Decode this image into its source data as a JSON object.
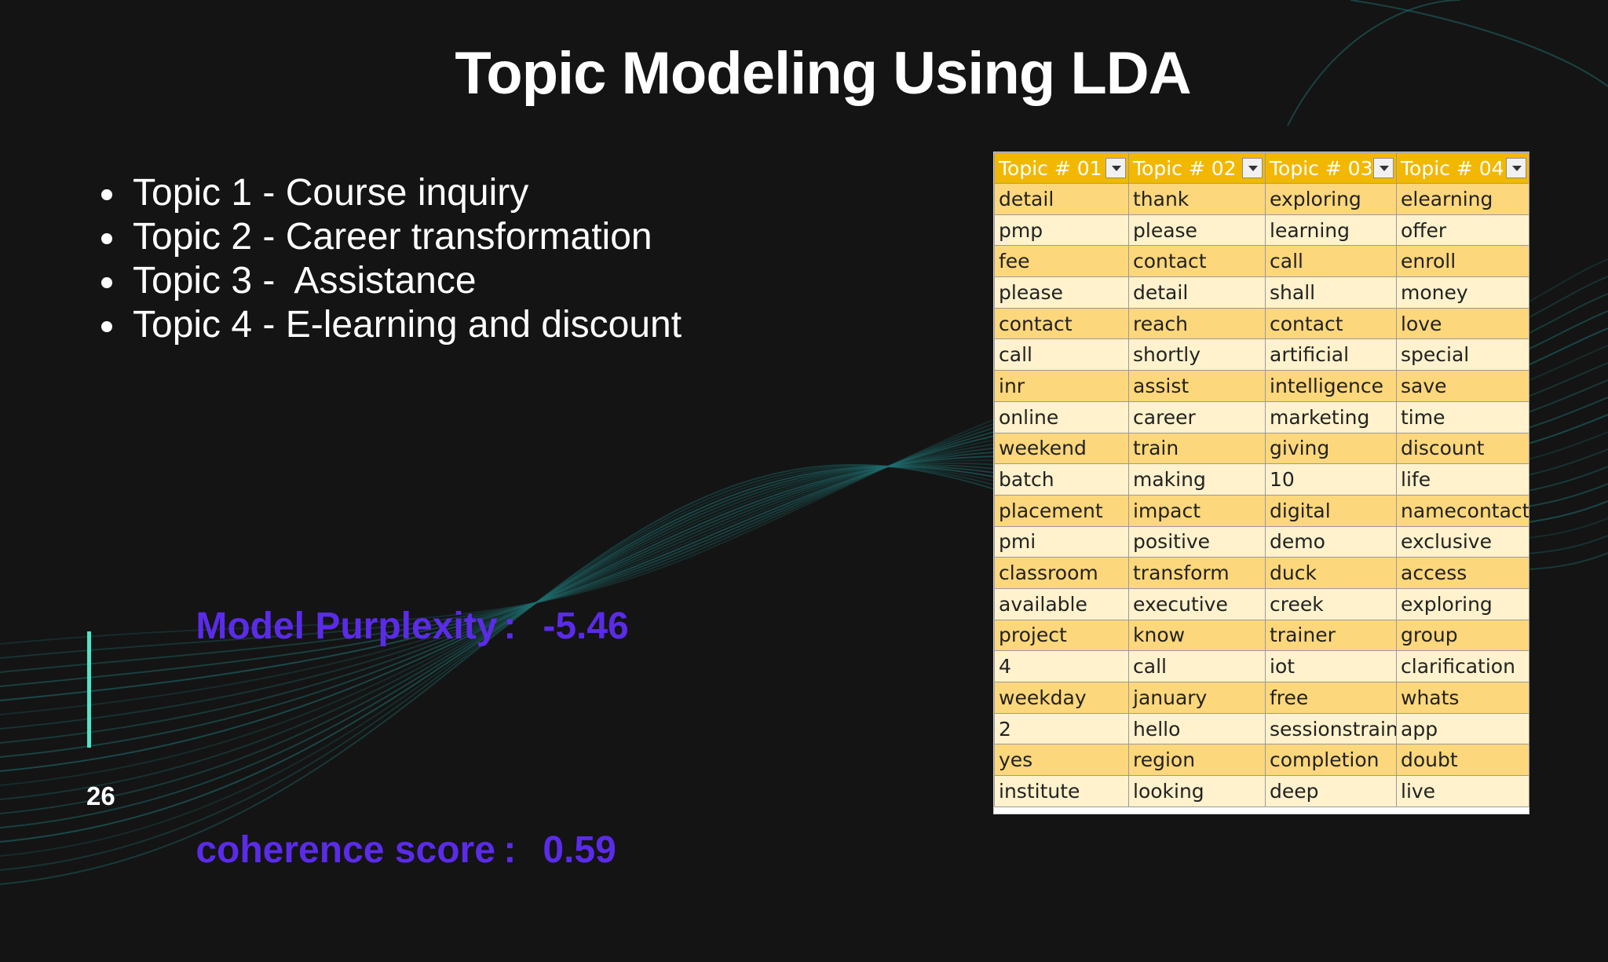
{
  "slide": {
    "title": "Topic Modeling Using LDA",
    "page_number": "26"
  },
  "bullets": [
    "Topic 1 - Course inquiry",
    "Topic 2 - Career transformation",
    "Topic 3 -  Assistance",
    "Topic 4 - E-learning and discount"
  ],
  "metrics": [
    {
      "label": "Model Purplexity",
      "sep": ":",
      "value": "-5.46"
    },
    {
      "label": "coherence score",
      "sep": ":",
      "value": "0.59"
    }
  ],
  "colors": {
    "background": "#141414",
    "metric_text": "#5b2bea",
    "accent_bar": "#4ee6c6",
    "waves": "#1f6f70",
    "table_header": "#f2b800",
    "table_row_odd": "#fdd77b",
    "table_row_even": "#fff2cc"
  },
  "table": {
    "headers": [
      "Topic # 01",
      "Topic # 02",
      "Topic # 03",
      "Topic # 04"
    ],
    "header_icon": "dropdown-filter-icon",
    "rows": [
      [
        "detail",
        "thank",
        "exploring",
        "elearning"
      ],
      [
        "pmp",
        "please",
        "learning",
        "offer"
      ],
      [
        "fee",
        "contact",
        "call",
        "enroll"
      ],
      [
        "please",
        "detail",
        "shall",
        "money"
      ],
      [
        "contact",
        "reach",
        "contact",
        "love"
      ],
      [
        "call",
        "shortly",
        "artificial",
        "special"
      ],
      [
        "inr",
        "assist",
        "intelligence",
        "save"
      ],
      [
        "online",
        "career",
        "marketing",
        "time"
      ],
      [
        "weekend",
        "train",
        "giving",
        "discount"
      ],
      [
        "batch",
        "making",
        "10",
        "life"
      ],
      [
        "placement",
        "impact",
        "digital",
        "namecontact"
      ],
      [
        "pmi",
        "positive",
        "demo",
        "exclusive"
      ],
      [
        "classroom",
        "transform",
        "duck",
        "access"
      ],
      [
        "available",
        "executive",
        "creek",
        "exploring"
      ],
      [
        "project",
        "know",
        "trainer",
        "group"
      ],
      [
        "4",
        "call",
        "iot",
        "clarification"
      ],
      [
        "weekday",
        "january",
        "free",
        "whats"
      ],
      [
        "2",
        "hello",
        "sessionstrain",
        "app"
      ],
      [
        "yes",
        "region",
        "completion",
        "doubt"
      ],
      [
        "institute",
        "looking",
        "deep",
        "live"
      ]
    ]
  }
}
